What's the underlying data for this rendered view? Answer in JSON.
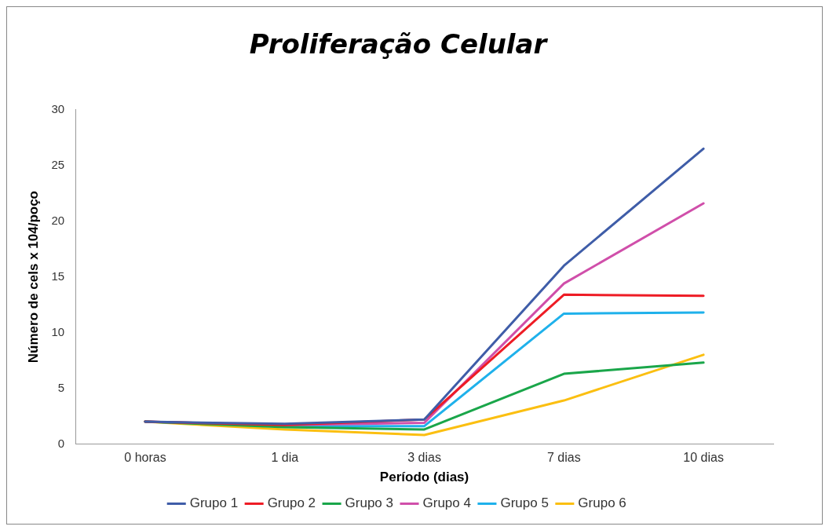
{
  "chart_data": {
    "type": "line",
    "title": "Proliferação Celular",
    "xlabel": "Período (dias)",
    "ylabel": "Número de cels x 104/poço",
    "categories": [
      "0 horas",
      "1 dia",
      "3 dias",
      "7 dias",
      "10 dias"
    ],
    "series": [
      {
        "name": "Grupo 1",
        "color": "#3f5da8",
        "values": [
          2.0,
          1.8,
          2.2,
          16.0,
          26.5
        ]
      },
      {
        "name": "Grupo 2",
        "color": "#ee1c25",
        "values": [
          2.0,
          1.7,
          2.2,
          13.4,
          13.3
        ]
      },
      {
        "name": "Grupo 3",
        "color": "#1aa64a",
        "values": [
          2.0,
          1.5,
          1.3,
          6.3,
          7.3
        ]
      },
      {
        "name": "Grupo 4",
        "color": "#d04faa",
        "values": [
          2.0,
          1.7,
          1.9,
          14.4,
          21.6
        ]
      },
      {
        "name": "Grupo 5",
        "color": "#1fb1eb",
        "values": [
          2.0,
          1.6,
          1.6,
          11.7,
          11.8
        ]
      },
      {
        "name": "Grupo 6",
        "color": "#fbbf11",
        "values": [
          2.0,
          1.3,
          0.8,
          3.9,
          8.0
        ]
      }
    ],
    "ylim": [
      0,
      30
    ],
    "yticks": [
      0,
      5,
      10,
      15,
      20,
      25,
      30
    ],
    "grid": false,
    "legend": "bottom",
    "marker": "none",
    "line_style": "solid"
  }
}
